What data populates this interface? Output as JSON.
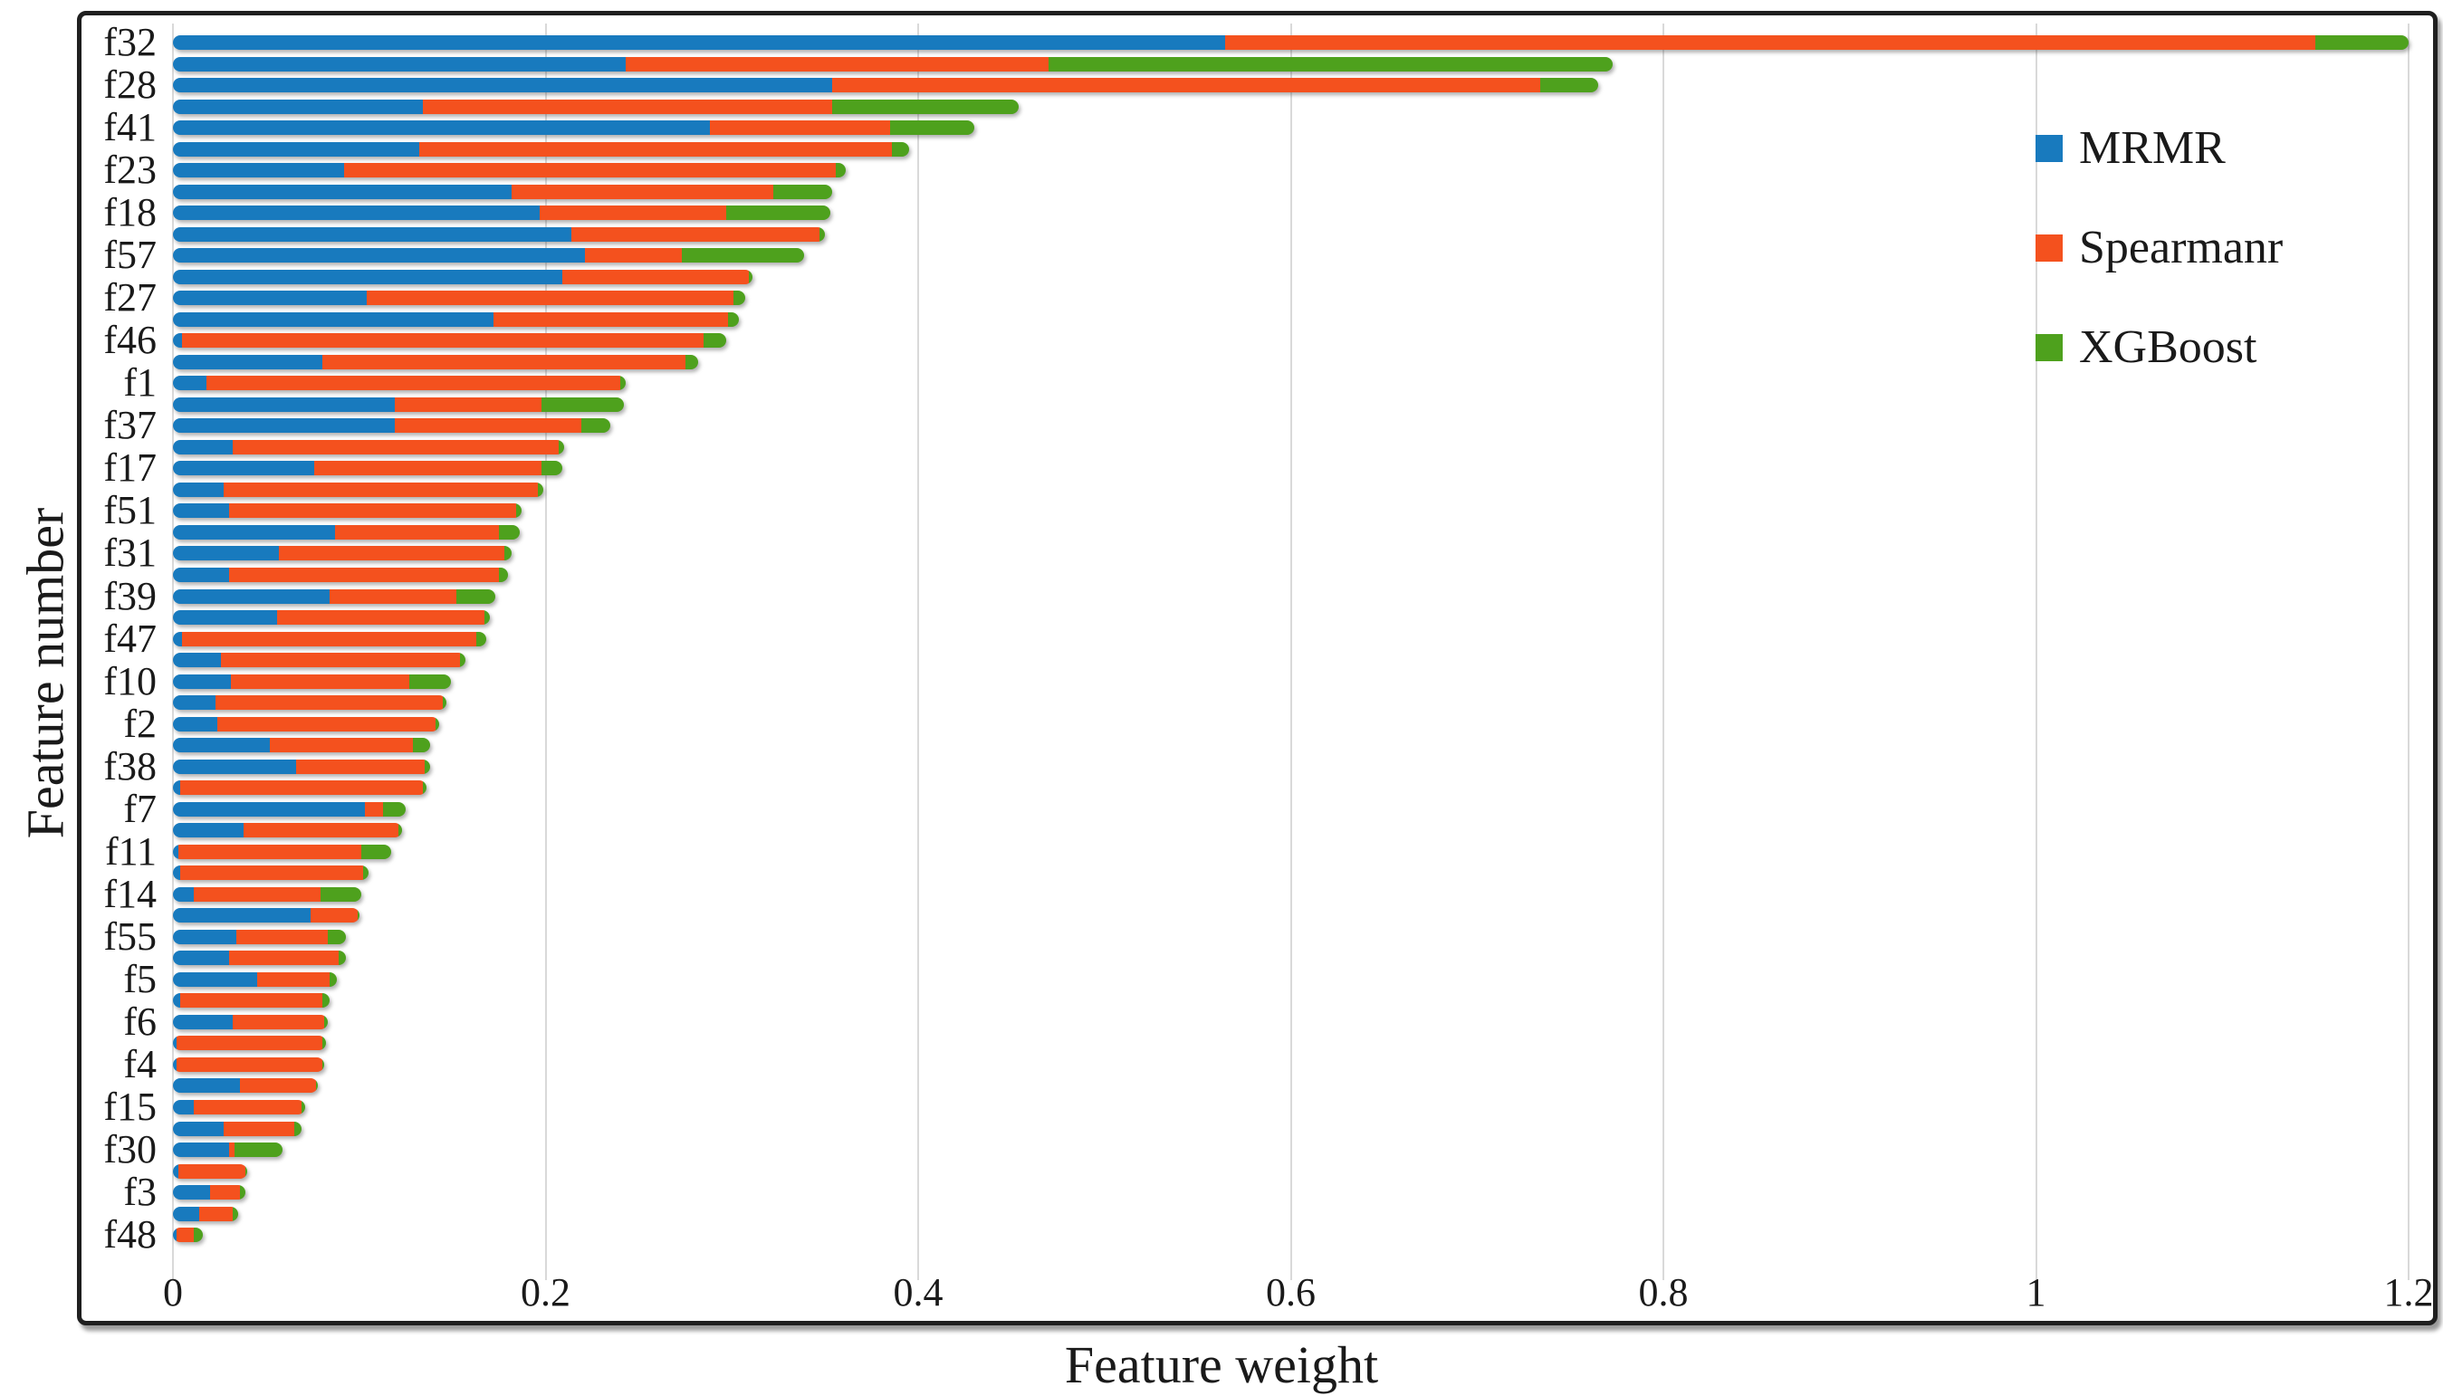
{
  "chart_data": {
    "type": "bar",
    "orientation": "horizontal",
    "stacked": true,
    "title": "",
    "xlabel": "Feature weight",
    "ylabel": "Feature number",
    "xlim": [
      0,
      1.2
    ],
    "xticks": [
      {
        "label": "0",
        "value": 0
      },
      {
        "label": "0.2",
        "value": 0.2
      },
      {
        "label": "0.4",
        "value": 0.4
      },
      {
        "label": "0.6",
        "value": 0.6
      },
      {
        "label": "0.8",
        "value": 0.8
      },
      {
        "label": "1",
        "value": 1
      },
      {
        "label": "1.2",
        "value": 1.2
      }
    ],
    "grid": "vertical-light-gray",
    "legend_position": "inside-top-right",
    "legend": [
      {
        "name": "MRMR",
        "color": "#187abe"
      },
      {
        "name": "Spearmanr",
        "color": "#f4511e"
      },
      {
        "name": "XGBoost",
        "color": "#4ea11d"
      }
    ],
    "rows": [
      {
        "label": "f32",
        "MRMR": 0.565,
        "Spearmanr": 0.585,
        "XGBoost": 0.05
      },
      {
        "label": "",
        "MRMR": 0.243,
        "Spearmanr": 0.227,
        "XGBoost": 0.303
      },
      {
        "label": "f28",
        "MRMR": 0.354,
        "Spearmanr": 0.38,
        "XGBoost": 0.031
      },
      {
        "label": "",
        "MRMR": 0.134,
        "Spearmanr": 0.22,
        "XGBoost": 0.1
      },
      {
        "label": "f41",
        "MRMR": 0.288,
        "Spearmanr": 0.097,
        "XGBoost": 0.045
      },
      {
        "label": "",
        "MRMR": 0.132,
        "Spearmanr": 0.254,
        "XGBoost": 0.009
      },
      {
        "label": "f23",
        "MRMR": 0.092,
        "Spearmanr": 0.264,
        "XGBoost": 0.005
      },
      {
        "label": "",
        "MRMR": 0.182,
        "Spearmanr": 0.14,
        "XGBoost": 0.032
      },
      {
        "label": "f18",
        "MRMR": 0.197,
        "Spearmanr": 0.1,
        "XGBoost": 0.056
      },
      {
        "label": "",
        "MRMR": 0.214,
        "Spearmanr": 0.133,
        "XGBoost": 0.003
      },
      {
        "label": "f57",
        "MRMR": 0.221,
        "Spearmanr": 0.052,
        "XGBoost": 0.066
      },
      {
        "label": "",
        "MRMR": 0.209,
        "Spearmanr": 0.1,
        "XGBoost": 0.002
      },
      {
        "label": "f27",
        "MRMR": 0.104,
        "Spearmanr": 0.197,
        "XGBoost": 0.006
      },
      {
        "label": "",
        "MRMR": 0.172,
        "Spearmanr": 0.126,
        "XGBoost": 0.006
      },
      {
        "label": "f46",
        "MRMR": 0.005,
        "Spearmanr": 0.28,
        "XGBoost": 0.012
      },
      {
        "label": "",
        "MRMR": 0.08,
        "Spearmanr": 0.195,
        "XGBoost": 0.007
      },
      {
        "label": "f1",
        "MRMR": 0.018,
        "Spearmanr": 0.222,
        "XGBoost": 0.003
      },
      {
        "label": "",
        "MRMR": 0.119,
        "Spearmanr": 0.079,
        "XGBoost": 0.044
      },
      {
        "label": "f37",
        "MRMR": 0.119,
        "Spearmanr": 0.1,
        "XGBoost": 0.016
      },
      {
        "label": "",
        "MRMR": 0.032,
        "Spearmanr": 0.175,
        "XGBoost": 0.003
      },
      {
        "label": "f17",
        "MRMR": 0.076,
        "Spearmanr": 0.122,
        "XGBoost": 0.011
      },
      {
        "label": "",
        "MRMR": 0.027,
        "Spearmanr": 0.169,
        "XGBoost": 0.003
      },
      {
        "label": "f51",
        "MRMR": 0.03,
        "Spearmanr": 0.154,
        "XGBoost": 0.003
      },
      {
        "label": "",
        "MRMR": 0.087,
        "Spearmanr": 0.088,
        "XGBoost": 0.011
      },
      {
        "label": "f31",
        "MRMR": 0.057,
        "Spearmanr": 0.121,
        "XGBoost": 0.004
      },
      {
        "label": "",
        "MRMR": 0.03,
        "Spearmanr": 0.145,
        "XGBoost": 0.005
      },
      {
        "label": "f39",
        "MRMR": 0.084,
        "Spearmanr": 0.068,
        "XGBoost": 0.021
      },
      {
        "label": "",
        "MRMR": 0.056,
        "Spearmanr": 0.111,
        "XGBoost": 0.003
      },
      {
        "label": "f47",
        "MRMR": 0.005,
        "Spearmanr": 0.158,
        "XGBoost": 0.005
      },
      {
        "label": "",
        "MRMR": 0.026,
        "Spearmanr": 0.128,
        "XGBoost": 0.003
      },
      {
        "label": "f10",
        "MRMR": 0.031,
        "Spearmanr": 0.096,
        "XGBoost": 0.022
      },
      {
        "label": "",
        "MRMR": 0.023,
        "Spearmanr": 0.122,
        "XGBoost": 0.002
      },
      {
        "label": "f2",
        "MRMR": 0.024,
        "Spearmanr": 0.117,
        "XGBoost": 0.002
      },
      {
        "label": "",
        "MRMR": 0.052,
        "Spearmanr": 0.077,
        "XGBoost": 0.009
      },
      {
        "label": "f38",
        "MRMR": 0.066,
        "Spearmanr": 0.069,
        "XGBoost": 0.003
      },
      {
        "label": "",
        "MRMR": 0.004,
        "Spearmanr": 0.13,
        "XGBoost": 0.002
      },
      {
        "label": "f7",
        "MRMR": 0.103,
        "Spearmanr": 0.01,
        "XGBoost": 0.012
      },
      {
        "label": "",
        "MRMR": 0.038,
        "Spearmanr": 0.083,
        "XGBoost": 0.002
      },
      {
        "label": "f11",
        "MRMR": 0.003,
        "Spearmanr": 0.098,
        "XGBoost": 0.016
      },
      {
        "label": "",
        "MRMR": 0.004,
        "Spearmanr": 0.098,
        "XGBoost": 0.003
      },
      {
        "label": "f14",
        "MRMR": 0.011,
        "Spearmanr": 0.068,
        "XGBoost": 0.022
      },
      {
        "label": "",
        "MRMR": 0.074,
        "Spearmanr": 0.025,
        "XGBoost": 0.001
      },
      {
        "label": "f55",
        "MRMR": 0.034,
        "Spearmanr": 0.049,
        "XGBoost": 0.01
      },
      {
        "label": "",
        "MRMR": 0.03,
        "Spearmanr": 0.059,
        "XGBoost": 0.004
      },
      {
        "label": "f5",
        "MRMR": 0.045,
        "Spearmanr": 0.039,
        "XGBoost": 0.004
      },
      {
        "label": "",
        "MRMR": 0.004,
        "Spearmanr": 0.076,
        "XGBoost": 0.004
      },
      {
        "label": "f6",
        "MRMR": 0.032,
        "Spearmanr": 0.049,
        "XGBoost": 0.002
      },
      {
        "label": "",
        "MRMR": 0.002,
        "Spearmanr": 0.078,
        "XGBoost": 0.002
      },
      {
        "label": "f4",
        "MRMR": 0.002,
        "Spearmanr": 0.078,
        "XGBoost": 0.001
      },
      {
        "label": "",
        "MRMR": 0.036,
        "Spearmanr": 0.041,
        "XGBoost": 0.001
      },
      {
        "label": "f15",
        "MRMR": 0.011,
        "Spearmanr": 0.058,
        "XGBoost": 0.002
      },
      {
        "label": "",
        "MRMR": 0.027,
        "Spearmanr": 0.038,
        "XGBoost": 0.004
      },
      {
        "label": "f30",
        "MRMR": 0.03,
        "Spearmanr": 0.003,
        "XGBoost": 0.026
      },
      {
        "label": "",
        "MRMR": 0.003,
        "Spearmanr": 0.036,
        "XGBoost": 0.001
      },
      {
        "label": "f3",
        "MRMR": 0.02,
        "Spearmanr": 0.016,
        "XGBoost": 0.003
      },
      {
        "label": "",
        "MRMR": 0.014,
        "Spearmanr": 0.018,
        "XGBoost": 0.003
      },
      {
        "label": "f48",
        "MRMR": 0.002,
        "Spearmanr": 0.009,
        "XGBoost": 0.005
      }
    ]
  },
  "style": {
    "gridline_color": "#d9d9d9",
    "frame_color": "#1f1f1f",
    "text_color": "#1a1a1a",
    "background": "#ffffff"
  }
}
